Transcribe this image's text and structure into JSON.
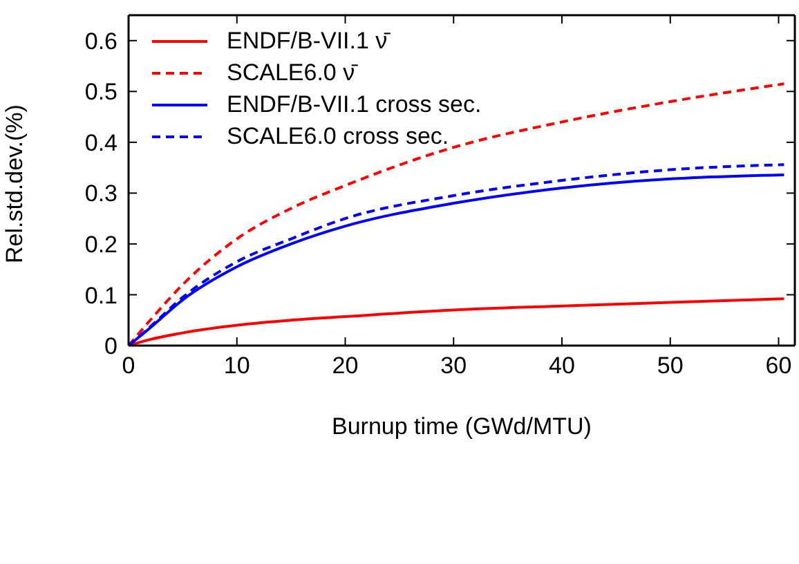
{
  "chart_data": {
    "type": "line",
    "xlabel": "Burnup time (GWd/MTU)",
    "ylabel": "Rel.std.dev.(%)",
    "x": [
      0,
      2,
      5,
      10,
      15,
      20,
      30,
      40,
      50,
      60.5
    ],
    "series": [
      {
        "name": "ENDF/B-VII.1 ν̄",
        "color": "#ff0000",
        "line_style": "solid",
        "values": [
          0,
          0.012,
          0.025,
          0.04,
          0.05,
          0.057,
          0.07,
          0.078,
          0.085,
          0.092
        ]
      },
      {
        "name": "SCALE6.0 ν̄",
        "color": "#ff0000",
        "line_style": "dashed",
        "values": [
          0,
          0.05,
          0.12,
          0.21,
          0.27,
          0.315,
          0.39,
          0.44,
          0.48,
          0.515
        ]
      },
      {
        "name": "ENDF/B-VII.1 cross sec.",
        "color": "#0000ff",
        "line_style": "solid",
        "values": [
          0,
          0.035,
          0.09,
          0.155,
          0.2,
          0.235,
          0.28,
          0.31,
          0.328,
          0.336
        ]
      },
      {
        "name": "SCALE6.0 cross sec.",
        "color": "#0000ff",
        "line_style": "dashed",
        "values": [
          0,
          0.037,
          0.095,
          0.165,
          0.21,
          0.25,
          0.295,
          0.325,
          0.346,
          0.356
        ]
      }
    ],
    "xlim": [
      0,
      61.5
    ],
    "xticks": [
      0,
      10,
      20,
      30,
      40,
      50,
      60
    ],
    "ylim": [
      0,
      0.65
    ],
    "yticks": [
      0,
      0.1,
      0.2,
      0.3,
      0.4,
      0.5,
      0.6
    ],
    "grid": false,
    "legend": "top left",
    "marker": "none"
  }
}
